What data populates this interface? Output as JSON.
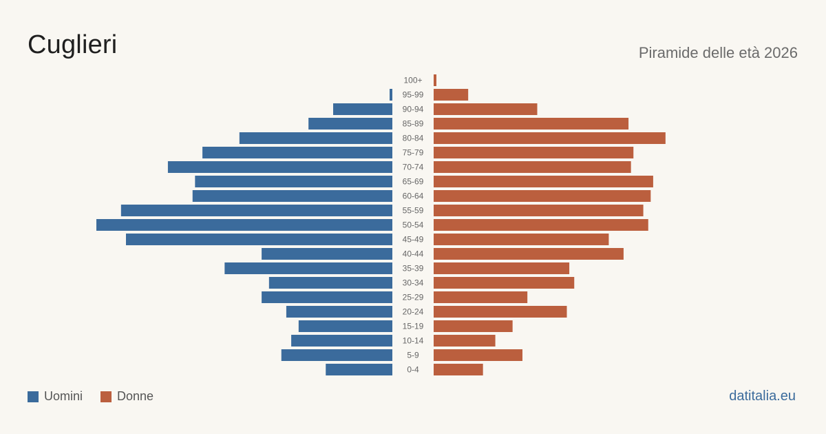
{
  "header": {
    "title": "Cuglieri",
    "subtitle": "Piramide delle età 2026"
  },
  "legend": {
    "men_label": "Uomini",
    "women_label": "Donne"
  },
  "footer": {
    "source": "datitalia.eu"
  },
  "colors": {
    "men": "#3b6b9c",
    "women": "#bb5f3e",
    "background": "#f9f7f2",
    "age_label": "#666666"
  },
  "chart_data": {
    "type": "bar",
    "orientation": "horizontal-pyramid",
    "title": "Cuglieri",
    "subtitle": "Piramide delle età 2026",
    "categories": [
      "100+",
      "95-99",
      "90-94",
      "85-89",
      "80-84",
      "75-79",
      "70-74",
      "65-69",
      "60-64",
      "55-59",
      "50-54",
      "45-49",
      "40-44",
      "35-39",
      "30-34",
      "25-29",
      "20-24",
      "15-19",
      "10-14",
      "5-9",
      "0-4"
    ],
    "series": [
      {
        "name": "Uomini",
        "side": "left",
        "values": [
          0,
          1,
          24,
          34,
          62,
          77,
          91,
          80,
          81,
          110,
          120,
          108,
          53,
          68,
          50,
          53,
          43,
          38,
          41,
          45,
          27
        ]
      },
      {
        "name": "Donne",
        "side": "right",
        "values": [
          1,
          14,
          42,
          79,
          94,
          81,
          80,
          89,
          88,
          85,
          87,
          71,
          77,
          55,
          57,
          38,
          54,
          32,
          25,
          36,
          20
        ]
      }
    ],
    "legend_position": "bottom-left",
    "grid": false
  }
}
